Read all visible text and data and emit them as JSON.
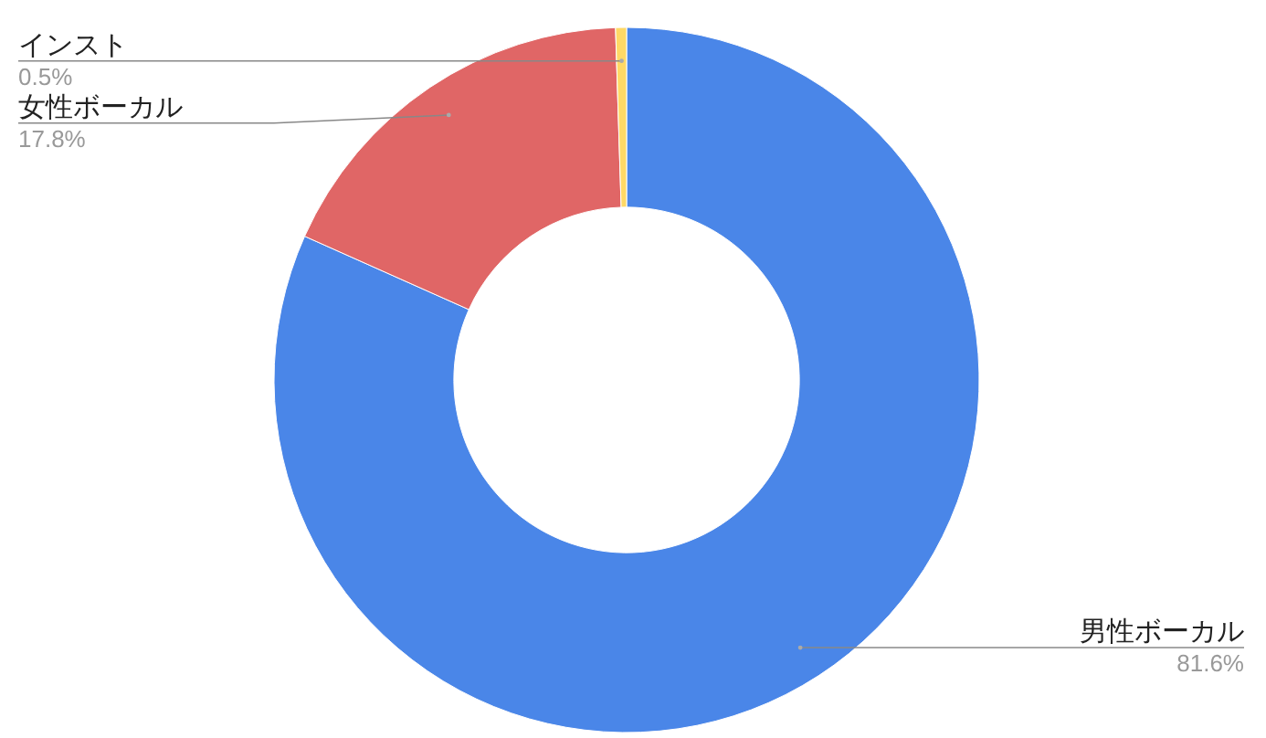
{
  "chart_data": {
    "type": "donut",
    "categories": [
      "男性ボーカル",
      "女性ボーカル",
      "インスト"
    ],
    "values": [
      81.6,
      17.8,
      0.5
    ],
    "colors": [
      "#4a86e8",
      "#e06666",
      "#ffd966"
    ],
    "value_labels": [
      "81.6%",
      "17.8%",
      "0.5%"
    ]
  }
}
